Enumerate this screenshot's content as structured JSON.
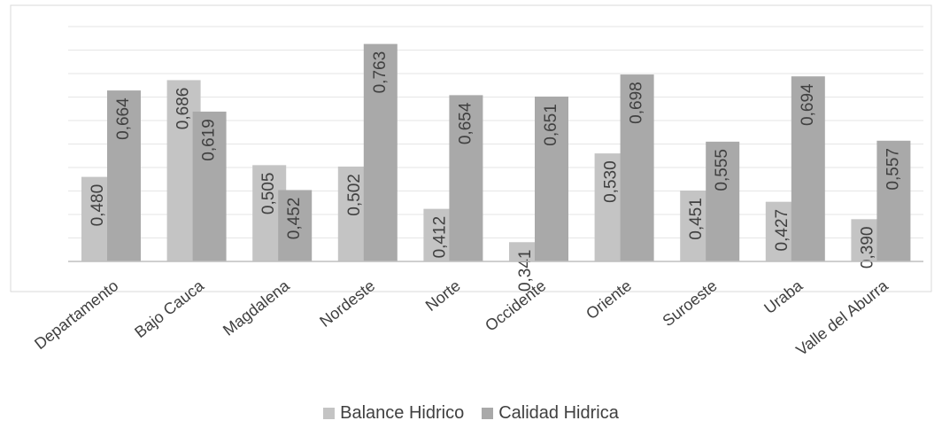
{
  "chart_data": {
    "type": "bar",
    "title": "",
    "xlabel": "",
    "ylabel": "",
    "categories": [
      "Departamento",
      "Bajo Cauca",
      "Magdalena",
      "Nordeste",
      "Norte",
      "Occidente",
      "Oriente",
      "Suroeste",
      "Uraba",
      "Valle del Aburra"
    ],
    "series": [
      {
        "name": "Balance Hidrico",
        "color": "#c4c4c4",
        "values": [
          0.48,
          0.686,
          0.505,
          0.502,
          0.412,
          0.341,
          0.53,
          0.451,
          0.427,
          0.39
        ]
      },
      {
        "name": "Calidad Hidrica",
        "color": "#a9a9a9",
        "values": [
          0.664,
          0.619,
          0.452,
          0.763,
          0.654,
          0.651,
          0.698,
          0.555,
          0.694,
          0.557
        ]
      }
    ],
    "value_labels": [
      [
        "0,480",
        "0,686",
        "0,505",
        "0,502",
        "0,412",
        "0,341",
        "0,530",
        "0,451",
        "0,427",
        "0,390"
      ],
      [
        "0,664",
        "0,619",
        "0,452",
        "0,763",
        "0,654",
        "0,651",
        "0,698",
        "0,555",
        "0,694",
        "0,557"
      ]
    ],
    "ylim": [
      0.3,
      0.8
    ],
    "grid": true,
    "legend_position": "bottom"
  }
}
